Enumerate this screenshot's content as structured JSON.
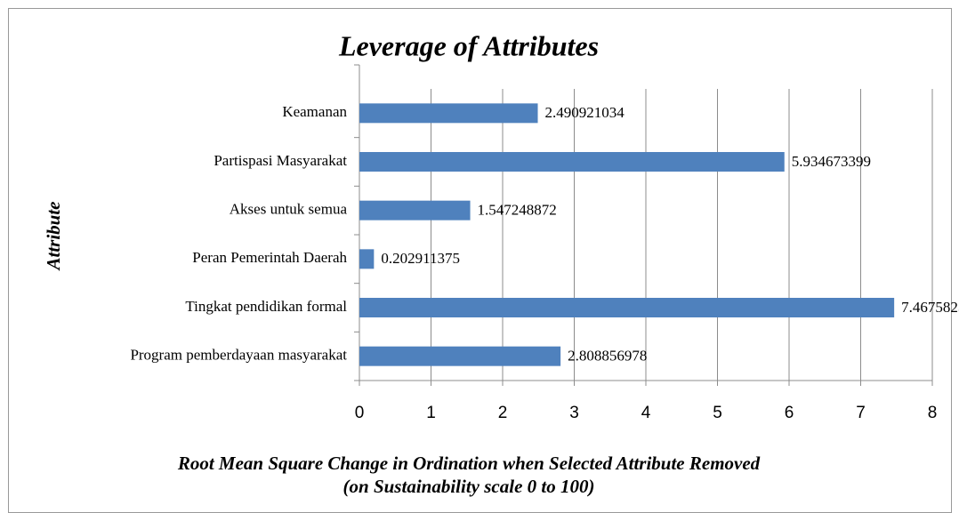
{
  "chart_data": {
    "type": "bar",
    "orientation": "horizontal",
    "title": "Leverage of Attributes",
    "x_label": [
      "Root Mean Square Change in Ordination when Selected Attribute Removed",
      "(on Sustainability scale 0 to 100)"
    ],
    "y_label": "Attribute",
    "categories": [
      "Keamanan",
      "Partispasi Masyarakat",
      "Akses untuk semua",
      "Peran Pemerintah Daerah",
      "Tingkat pendidikan formal",
      "Program pemberdayaan masyarakat"
    ],
    "values": [
      2.490921034,
      5.934673399,
      1.547248872,
      0.202911375,
      7.467582579,
      2.808856978
    ],
    "color": "#4f81bd",
    "xlim": [
      0,
      8
    ],
    "xticks": [
      0,
      1,
      2,
      3,
      4,
      5,
      6,
      7,
      8
    ],
    "grid": true
  }
}
